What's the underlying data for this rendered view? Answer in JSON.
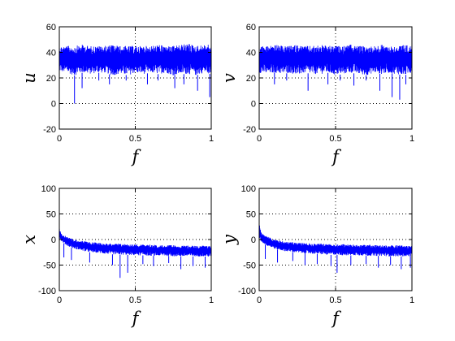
{
  "colors": {
    "series": "#0000ff",
    "axes": "#000000",
    "grid": "#000000",
    "background": "#ffffff"
  },
  "chart_data": [
    {
      "type": "line",
      "title": "",
      "xlabel": "f",
      "ylabel": "u",
      "xlim": [
        0,
        1
      ],
      "ylim": [
        -20,
        60
      ],
      "xticks": [
        "0",
        "0.5",
        "1"
      ],
      "yticks": [
        "-20",
        "0",
        "20",
        "40",
        "60"
      ],
      "grid": true,
      "series": [
        {
          "x": [
            0,
            0.05,
            0.1,
            0.15,
            0.2,
            0.25,
            0.3,
            0.35,
            0.4,
            0.45,
            0.5,
            0.55,
            0.6,
            0.65,
            0.7,
            0.75,
            0.8,
            0.85,
            0.9,
            0.95,
            1
          ],
          "y_upper": [
            45,
            45,
            45,
            46,
            45,
            45,
            45,
            46,
            45,
            45,
            45,
            45,
            45,
            46,
            45,
            45,
            46,
            47,
            45,
            46,
            46
          ],
          "y_lower": [
            25,
            24,
            22,
            24,
            23,
            24,
            24,
            22,
            23,
            22,
            24,
            23,
            24,
            23,
            24,
            22,
            23,
            23,
            22,
            24,
            23
          ]
        }
      ],
      "dips": [
        [
          0.1,
          0
        ],
        [
          0.15,
          12
        ],
        [
          0.26,
          18
        ],
        [
          0.33,
          15
        ],
        [
          0.44,
          18
        ],
        [
          0.58,
          15
        ],
        [
          0.65,
          18
        ],
        [
          0.76,
          12
        ],
        [
          0.82,
          15
        ],
        [
          0.91,
          10
        ],
        [
          0.99,
          5
        ]
      ]
    },
    {
      "type": "line",
      "title": "",
      "xlabel": "f",
      "ylabel": "v",
      "xlim": [
        0,
        1
      ],
      "ylim": [
        -20,
        60
      ],
      "xticks": [
        "0",
        "0.5",
        "1"
      ],
      "yticks": [
        "-20",
        "0",
        "20",
        "40",
        "60"
      ],
      "grid": true,
      "series": [
        {
          "x": [
            0,
            0.05,
            0.1,
            0.15,
            0.2,
            0.25,
            0.3,
            0.35,
            0.4,
            0.45,
            0.5,
            0.55,
            0.6,
            0.65,
            0.7,
            0.75,
            0.8,
            0.85,
            0.9,
            0.95,
            1
          ],
          "y_upper": [
            45,
            45,
            46,
            45,
            45,
            46,
            45,
            45,
            46,
            45,
            45,
            45,
            46,
            45,
            45,
            45,
            46,
            45,
            45,
            46,
            45
          ],
          "y_lower": [
            24,
            23,
            24,
            23,
            24,
            22,
            24,
            23,
            23,
            24,
            22,
            23,
            24,
            23,
            22,
            24,
            23,
            24,
            23,
            22,
            24
          ]
        }
      ],
      "dips": [
        [
          0.1,
          15
        ],
        [
          0.18,
          18
        ],
        [
          0.32,
          10
        ],
        [
          0.45,
          15
        ],
        [
          0.53,
          18
        ],
        [
          0.62,
          14
        ],
        [
          0.7,
          18
        ],
        [
          0.79,
          10
        ],
        [
          0.87,
          5
        ],
        [
          0.92,
          3
        ],
        [
          0.96,
          15
        ]
      ]
    },
    {
      "type": "line",
      "title": "",
      "xlabel": "f",
      "ylabel": "x",
      "xlim": [
        0,
        1
      ],
      "ylim": [
        -100,
        100
      ],
      "xticks": [
        "0",
        "0.5",
        "1"
      ],
      "yticks": [
        "-100",
        "-50",
        "0",
        "50",
        "100"
      ],
      "grid": true,
      "series": [
        {
          "x": [
            0,
            0.01,
            0.02,
            0.05,
            0.1,
            0.15,
            0.2,
            0.25,
            0.3,
            0.35,
            0.4,
            0.45,
            0.5,
            0.55,
            0.6,
            0.65,
            0.7,
            0.75,
            0.8,
            0.85,
            0.9,
            0.95,
            1
          ],
          "y_upper": [
            22,
            15,
            10,
            5,
            0,
            -3,
            -5,
            -6,
            -7,
            -8,
            -8,
            -9,
            -9,
            -10,
            -10,
            -11,
            -11,
            -11,
            -12,
            -12,
            -12,
            -12,
            -12
          ],
          "y_lower": [
            5,
            -2,
            -5,
            -12,
            -18,
            -22,
            -25,
            -26,
            -28,
            -29,
            -30,
            -30,
            -31,
            -31,
            -32,
            -32,
            -32,
            -33,
            -33,
            -33,
            -33,
            -33,
            -34
          ]
        }
      ],
      "dips": [
        [
          0.03,
          -35
        ],
        [
          0.08,
          -40
        ],
        [
          0.2,
          -45
        ],
        [
          0.35,
          -50
        ],
        [
          0.4,
          -75
        ],
        [
          0.45,
          -65
        ],
        [
          0.55,
          -48
        ],
        [
          0.62,
          -52
        ],
        [
          0.72,
          -46
        ],
        [
          0.8,
          -58
        ],
        [
          0.88,
          -52
        ],
        [
          0.96,
          -55
        ]
      ]
    },
    {
      "type": "line",
      "title": "",
      "xlabel": "f",
      "ylabel": "y",
      "xlim": [
        0,
        1
      ],
      "ylim": [
        -100,
        100
      ],
      "xticks": [
        "0",
        "0.5",
        "1"
      ],
      "yticks": [
        "-100",
        "-50",
        "0",
        "50",
        "100"
      ],
      "grid": true,
      "series": [
        {
          "x": [
            0,
            0.01,
            0.02,
            0.05,
            0.1,
            0.15,
            0.2,
            0.25,
            0.3,
            0.35,
            0.4,
            0.45,
            0.5,
            0.55,
            0.6,
            0.65,
            0.7,
            0.75,
            0.8,
            0.85,
            0.9,
            0.95,
            1
          ],
          "y_upper": [
            30,
            18,
            12,
            6,
            0,
            -3,
            -5,
            -6,
            -7,
            -8,
            -8,
            -9,
            -9,
            -9,
            -10,
            -10,
            -10,
            -11,
            -11,
            -11,
            -11,
            -12,
            -12
          ],
          "y_lower": [
            5,
            -3,
            -6,
            -12,
            -18,
            -22,
            -24,
            -26,
            -27,
            -28,
            -29,
            -30,
            -30,
            -31,
            -31,
            -31,
            -32,
            -32,
            -32,
            -33,
            -33,
            -33,
            -33
          ]
        }
      ],
      "dips": [
        [
          0.04,
          -38
        ],
        [
          0.12,
          -45
        ],
        [
          0.22,
          -42
        ],
        [
          0.3,
          -50
        ],
        [
          0.38,
          -48
        ],
        [
          0.47,
          -52
        ],
        [
          0.51,
          -65
        ],
        [
          0.6,
          -50
        ],
        [
          0.7,
          -48
        ],
        [
          0.78,
          -55
        ],
        [
          0.86,
          -50
        ],
        [
          0.93,
          -58
        ],
        [
          0.99,
          -55
        ]
      ]
    }
  ]
}
